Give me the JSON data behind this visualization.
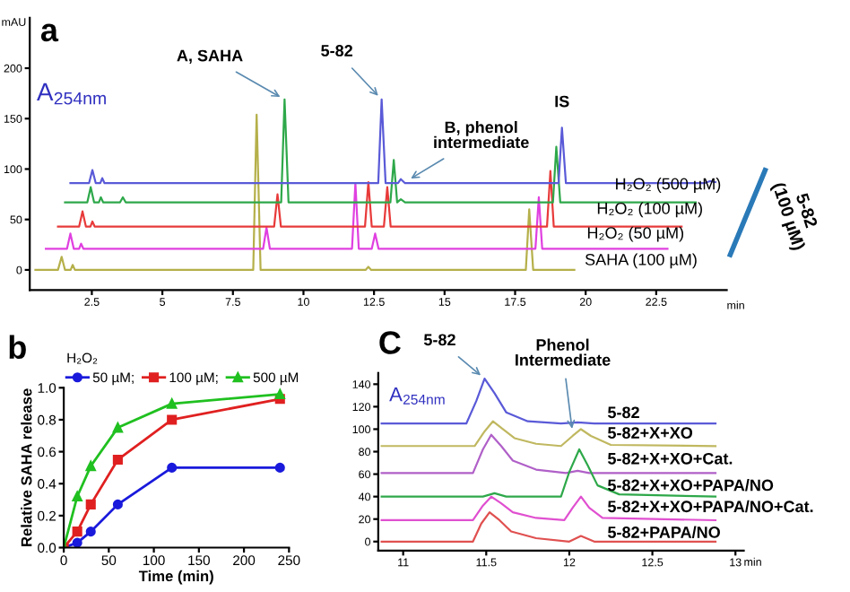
{
  "chart_data": [
    {
      "type": "line",
      "title": "a",
      "xlabel": "min",
      "ylabel": "mAU",
      "xlim": [
        0.3,
        25
      ],
      "xticks": [
        2.5,
        5,
        7.5,
        10,
        12.5,
        15,
        17.5,
        20,
        22.5
      ],
      "ylim": [
        -20,
        250
      ],
      "yticks": [
        0,
        50,
        100,
        150,
        200
      ],
      "series": [
        {
          "color": "#b5b04a",
          "x": [
            0.5,
            1.3,
            1.43,
            1.55,
            1.75,
            1.82,
            1.9,
            8.22,
            8.34,
            8.48,
            12.2,
            12.3,
            12.4,
            17.88,
            18.0,
            18.14,
            19.6
          ],
          "values": [
            0,
            0,
            13,
            0,
            0,
            5,
            0,
            0,
            154,
            0,
            0,
            3,
            0,
            0,
            60,
            0,
            0
          ]
        },
        {
          "color": "#e040e0",
          "x": [
            0.87,
            1.62,
            1.74,
            1.86,
            2.05,
            2.12,
            2.2,
            8.57,
            8.69,
            8.81,
            11.72,
            11.84,
            11.96,
            12.42,
            12.54,
            12.66,
            18.22,
            18.34,
            18.46,
            22.9
          ],
          "values": [
            21,
            21,
            36,
            21,
            21,
            26,
            21,
            21,
            42,
            21,
            21,
            86,
            21,
            21,
            36,
            21,
            21,
            72,
            21,
            21
          ]
        },
        {
          "color": "#e83a3a",
          "x": [
            1.3,
            2.05,
            2.17,
            2.29,
            2.45,
            2.52,
            2.6,
            8.96,
            9.08,
            9.2,
            12.18,
            12.3,
            12.42,
            12.85,
            12.97,
            13.09,
            18.63,
            18.75,
            18.87,
            23.4
          ],
          "values": [
            43,
            43,
            58,
            43,
            43,
            48,
            43,
            43,
            75,
            43,
            43,
            87,
            43,
            43,
            82,
            43,
            43,
            98,
            43,
            43
          ]
        },
        {
          "color": "#2ea84a",
          "x": [
            1.55,
            2.34,
            2.46,
            2.58,
            2.75,
            2.82,
            2.9,
            3.5,
            3.6,
            3.7,
            9.21,
            9.33,
            9.47,
            13.08,
            13.2,
            13.32,
            13.45,
            13.6,
            18.84,
            18.96,
            19.1,
            23.9
          ],
          "values": [
            67,
            67,
            82,
            67,
            67,
            72,
            67,
            67,
            72,
            67,
            67,
            169,
            67,
            67,
            109,
            67,
            70,
            67,
            67,
            122,
            67,
            67
          ]
        },
        {
          "color": "#5a5ad8",
          "x": [
            1.74,
            2.4,
            2.52,
            2.64,
            2.8,
            2.87,
            2.95,
            12.65,
            12.77,
            12.91,
            13.35,
            13.45,
            13.6,
            19.04,
            19.16,
            19.3,
            24.2,
            24.4,
            24.6
          ],
          "values": [
            86,
            86,
            99,
            86,
            86,
            91,
            86,
            86,
            169,
            86,
            86,
            90,
            86,
            86,
            141,
            86,
            86,
            88,
            87
          ]
        }
      ],
      "annotations": [
        "A$_{254nm}$",
        {
          "text": "A, SAHA",
          "x": 9.33,
          "y": 169
        },
        {
          "text": "5-82",
          "x": 12.77,
          "y": 169
        },
        {
          "text": "B, phenol\nintermediate",
          "x": 13.65,
          "y": 88
        },
        {
          "text": "IS",
          "x": 19.16,
          "y": 141
        },
        "H₂O₂ (500 µM)",
        "H₂O₂ (100 µM)",
        "H₂O₂ (50 µM)",
        "SAHA (100 µM)",
        "5-82\n(100 µM)"
      ]
    },
    {
      "type": "line",
      "title": "b",
      "xlabel": "Time (min)",
      "ylabel": "Relative SAHA release",
      "xlim": [
        0,
        250
      ],
      "xticks": [
        0,
        50,
        100,
        150,
        200,
        250
      ],
      "ylim": [
        0,
        1.0
      ],
      "yticks": [
        {
          "value": 0,
          "label": "0.0"
        },
        0.2,
        0.4,
        0.6,
        0.8,
        {
          "value": 1,
          "label": "1.0"
        }
      ],
      "legend": "top",
      "legend_title": "H₂O₂",
      "series": [
        {
          "name": "50 µM;",
          "color": "#1a1adc",
          "marker": "circle",
          "x": [
            0,
            15,
            30,
            60,
            120,
            240
          ],
          "values": [
            0,
            0.03,
            0.1,
            0.27,
            0.5,
            0.5
          ]
        },
        {
          "name": "100 µM;",
          "color": "#e02020",
          "marker": "square",
          "x": [
            0,
            15,
            30,
            60,
            120,
            240
          ],
          "values": [
            0,
            0.1,
            0.27,
            0.55,
            0.8,
            0.93
          ]
        },
        {
          "name": "500 µM",
          "color": "#20c020",
          "marker": "triangle",
          "x": [
            0,
            15,
            30,
            60,
            120,
            240
          ],
          "values": [
            0,
            0.32,
            0.51,
            0.75,
            0.9,
            0.96
          ]
        }
      ]
    },
    {
      "type": "line",
      "title": "C",
      "xlabel": "min",
      "xlim": [
        10.85,
        13.05
      ],
      "xticks": [
        11,
        11.5,
        12,
        12.5,
        13
      ],
      "ylim": [
        -8,
        150
      ],
      "yticks": [
        0,
        20,
        40,
        60,
        80,
        100,
        120,
        140
      ],
      "series": [
        {
          "color": "#5a5ad8",
          "x": [
            10.87,
            11.38,
            11.44,
            11.49,
            11.55,
            11.62,
            11.75,
            11.95,
            12.05,
            12.15,
            12.88
          ],
          "values": [
            105,
            105,
            125,
            145,
            132,
            115,
            107,
            105,
            106,
            105,
            105
          ]
        },
        {
          "color": "#c0b860",
          "x": [
            10.87,
            11.43,
            11.49,
            11.54,
            11.6,
            11.67,
            11.8,
            11.95,
            12.02,
            12.07,
            12.13,
            12.25,
            12.88
          ],
          "values": [
            85,
            85,
            98,
            107,
            100,
            92,
            87,
            85,
            94,
            100,
            94,
            86,
            85
          ]
        },
        {
          "color": "#b060c8",
          "x": [
            10.87,
            11.42,
            11.48,
            11.53,
            11.59,
            11.66,
            11.8,
            11.98,
            12.05,
            12.12,
            12.88
          ],
          "values": [
            61,
            61,
            82,
            95,
            85,
            72,
            64,
            61,
            63,
            61,
            61
          ]
        },
        {
          "color": "#2ea84a",
          "x": [
            10.87,
            11.48,
            11.55,
            11.62,
            11.95,
            12.0,
            12.06,
            12.11,
            12.17,
            12.3,
            12.88
          ],
          "values": [
            40,
            40,
            43,
            40,
            40,
            62,
            82,
            68,
            50,
            42,
            40
          ]
        },
        {
          "color": "#e050d0",
          "x": [
            10.87,
            11.42,
            11.48,
            11.53,
            11.59,
            11.66,
            11.8,
            11.97,
            12.02,
            12.07,
            12.12,
            12.2,
            12.88
          ],
          "values": [
            19,
            19,
            32,
            40,
            34,
            26,
            21,
            19,
            30,
            40,
            30,
            21,
            19
          ]
        },
        {
          "color": "#e05050",
          "x": [
            10.87,
            11.42,
            11.47,
            11.52,
            11.58,
            11.65,
            11.8,
            12.0,
            12.07,
            12.15,
            12.88
          ],
          "values": [
            0,
            0,
            16,
            26,
            19,
            9,
            3,
            0,
            5,
            0,
            0
          ]
        }
      ],
      "annotations": [
        "A$_{254nm}$",
        {
          "text": "5-82",
          "x": 11.49,
          "y": 145
        },
        {
          "text": "Phenol\nIntermediate",
          "x": 12.02,
          "y": 96
        },
        "5-82",
        "5-82+X+XO",
        "5-82+X+XO+Cat.",
        "5-82+X+XO+PAPA/NO",
        "5-82+X+XO+PAPA/NO+Cat.",
        "5-82+PAPA/NO"
      ]
    }
  ]
}
